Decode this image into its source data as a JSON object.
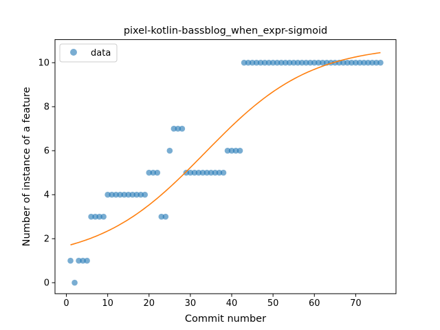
{
  "chart_data": {
    "type": "scatter",
    "title": "pixel-kotlin-bassblog_when_expr-sigmoid",
    "xlabel": "Commit number",
    "ylabel": "Number of instance of a feature",
    "xlim": [
      -2.75,
      79.75
    ],
    "ylim": [
      -0.5,
      11.05
    ],
    "xticks": [
      0,
      10,
      20,
      30,
      40,
      50,
      60,
      70
    ],
    "yticks": [
      0,
      2,
      4,
      6,
      8,
      10
    ],
    "grid": false,
    "legend_position": "top-left",
    "series": [
      {
        "name": "data",
        "kind": "points",
        "color": "#1f77b4",
        "x": [
          1,
          2,
          3,
          4,
          5,
          6,
          7,
          8,
          9,
          10,
          11,
          12,
          13,
          14,
          15,
          16,
          17,
          18,
          19,
          20,
          21,
          22,
          23,
          24,
          25,
          26,
          27,
          28,
          29,
          30,
          31,
          32,
          33,
          34,
          35,
          36,
          37,
          38,
          39,
          40,
          41,
          42,
          43,
          44,
          45,
          46,
          47,
          48,
          49,
          50,
          51,
          52,
          53,
          54,
          55,
          56,
          57,
          58,
          59,
          60,
          61,
          62,
          63,
          64,
          65,
          66,
          67,
          68,
          69,
          70,
          71,
          72,
          73,
          74,
          75,
          76
        ],
        "y": [
          1,
          0,
          1,
          1,
          1,
          3,
          3,
          3,
          3,
          4,
          4,
          4,
          4,
          4,
          4,
          4,
          4,
          4,
          4,
          5,
          5,
          5,
          3,
          3,
          6,
          7,
          7,
          7,
          5,
          5,
          5,
          5,
          5,
          5,
          5,
          5,
          5,
          5,
          6,
          6,
          6,
          6,
          10,
          10,
          10,
          10,
          10,
          10,
          10,
          10,
          10,
          10,
          10,
          10,
          10,
          10,
          10,
          10,
          10,
          10,
          10,
          10,
          10,
          10,
          10,
          10,
          10,
          10,
          10,
          10,
          10,
          10,
          10,
          10,
          10,
          10
        ]
      },
      {
        "name": "",
        "kind": "curve",
        "color": "#ff7f0e",
        "fit": {
          "L": 9.8,
          "k": 0.078,
          "x0": 33.5,
          "b": 1.0
        },
        "x_range": [
          1,
          76
        ]
      }
    ]
  }
}
